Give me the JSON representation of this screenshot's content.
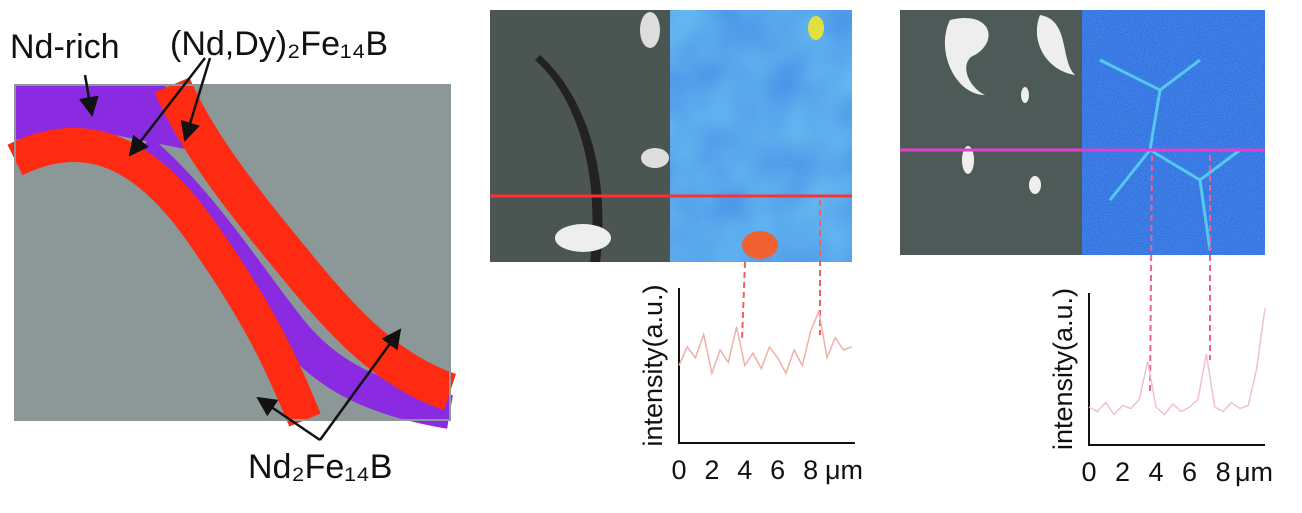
{
  "diagram": {
    "labels": {
      "nd_rich": "Nd-rich",
      "dy_phase": "(Nd,Dy)₂Fe₁₄B",
      "main_phase": "Nd₂Fe₁₄B"
    }
  },
  "chart_data": [
    {
      "type": "line",
      "ylabel": "intensity(a.u.)",
      "xlabel": "μm",
      "x": [
        0,
        0.5,
        1,
        1.5,
        2,
        2.5,
        3,
        3.5,
        4,
        4.5,
        5,
        5.5,
        6,
        6.5,
        7,
        7.5,
        8,
        8.5,
        9,
        9.5,
        10,
        10.5
      ],
      "values": [
        0.5,
        0.62,
        0.55,
        0.7,
        0.45,
        0.6,
        0.52,
        0.75,
        0.5,
        0.58,
        0.48,
        0.62,
        0.55,
        0.45,
        0.6,
        0.5,
        0.72,
        0.85,
        0.55,
        0.68,
        0.6,
        0.62
      ],
      "color": "#f0b0a8",
      "xlim": [
        0,
        10.7
      ],
      "ylim": [
        0,
        1
      ],
      "xticks": [
        0,
        2,
        4,
        6,
        8
      ]
    },
    {
      "type": "line",
      "ylabel": "intensity(a.u.)",
      "xlabel": "μm",
      "x": [
        0,
        0.5,
        1,
        1.5,
        2,
        2.5,
        3,
        3.5,
        4,
        4.5,
        5,
        5.5,
        6,
        6.5,
        7,
        7.5,
        8,
        8.5,
        9,
        9.5,
        10,
        10.5
      ],
      "values": [
        0.25,
        0.22,
        0.28,
        0.2,
        0.26,
        0.24,
        0.3,
        0.55,
        0.25,
        0.2,
        0.27,
        0.22,
        0.25,
        0.3,
        0.6,
        0.25,
        0.22,
        0.28,
        0.24,
        0.26,
        0.5,
        0.9
      ],
      "color": "#f0c0d0",
      "xlim": [
        0,
        10.5
      ],
      "ylim": [
        0,
        1
      ],
      "xticks": [
        0,
        2,
        4,
        6,
        8
      ]
    }
  ]
}
